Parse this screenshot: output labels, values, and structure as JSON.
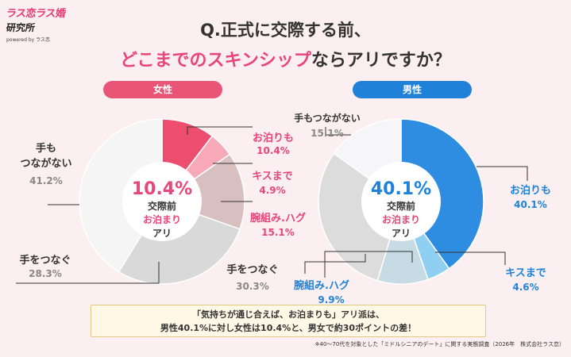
{
  "logo": {
    "line1": "ラス恋ラス婚",
    "line2": "研究所",
    "line3": "powered by ラス恋"
  },
  "heading": {
    "line1": "Q.正式に交際する前、",
    "line2_highlight": "どこまでのスキンシップ",
    "line2_rest": "ならアリですか？"
  },
  "panels": {
    "female_label": "女性",
    "male_label": "男性"
  },
  "colors": {
    "female_accent": "#e85576",
    "male_accent": "#1f82d8",
    "female_stay": "#ee4e6e",
    "female_kiss": "#f7a9b7",
    "female_hug": "#d9c0c0",
    "female_hold": "#d9d9d9",
    "female_nohold": "#f5f5f5",
    "male_stay": "#2e8de0",
    "male_kiss": "#8fd0f2",
    "male_hug": "#c6dbe4",
    "male_hold": "#dcdcdc",
    "male_nohold": "#f6f6f8"
  },
  "chart_data": [
    {
      "type": "pie",
      "name": "女性",
      "center_value": "10.4%",
      "center_line1": "交際前",
      "center_line2": "お泊まり",
      "center_line3": "アリ",
      "slices": [
        {
          "label": "お泊りも",
          "value": 10.4,
          "value_text": "10.4%"
        },
        {
          "label": "キスまで",
          "value": 4.9,
          "value_text": "4.9%"
        },
        {
          "label": "腕組み.ハグ",
          "value": 15.1,
          "value_text": "15.1%"
        },
        {
          "label": "手をつなぐ",
          "value": 28.3,
          "value_text": "28.3%"
        },
        {
          "label": "手もつながない",
          "value": 41.2,
          "value_text": "41.2%"
        }
      ]
    },
    {
      "type": "pie",
      "name": "男性",
      "center_value": "40.1%",
      "center_line1": "交際前",
      "center_line2": "お泊まり",
      "center_line3": "アリ",
      "slices": [
        {
          "label": "お泊りも",
          "value": 40.1,
          "value_text": "40.1%"
        },
        {
          "label": "キスまで",
          "value": 4.6,
          "value_text": "4.6%"
        },
        {
          "label": "腕組み.ハグ",
          "value": 9.9,
          "value_text": "9.9%"
        },
        {
          "label": "手をつなぐ",
          "value": 30.3,
          "value_text": "30.3%"
        },
        {
          "label": "手もつながない",
          "value": 15.1,
          "value_text": "15.1%"
        }
      ]
    }
  ],
  "female_labels": {
    "nohold_line1": "手も",
    "nohold_line2": "つながない"
  },
  "summary": {
    "line1": "「気持ちが通じ合えば、お泊まりも」アリ派は、",
    "line2": "男性40.1%に対し女性は10.4%と、男女で約30ポイントの差！"
  },
  "footnote": "※40〜70代を対象とした「ミドルシニアのデート」に関する実態調査（2026年　株式会社ラス恋）"
}
